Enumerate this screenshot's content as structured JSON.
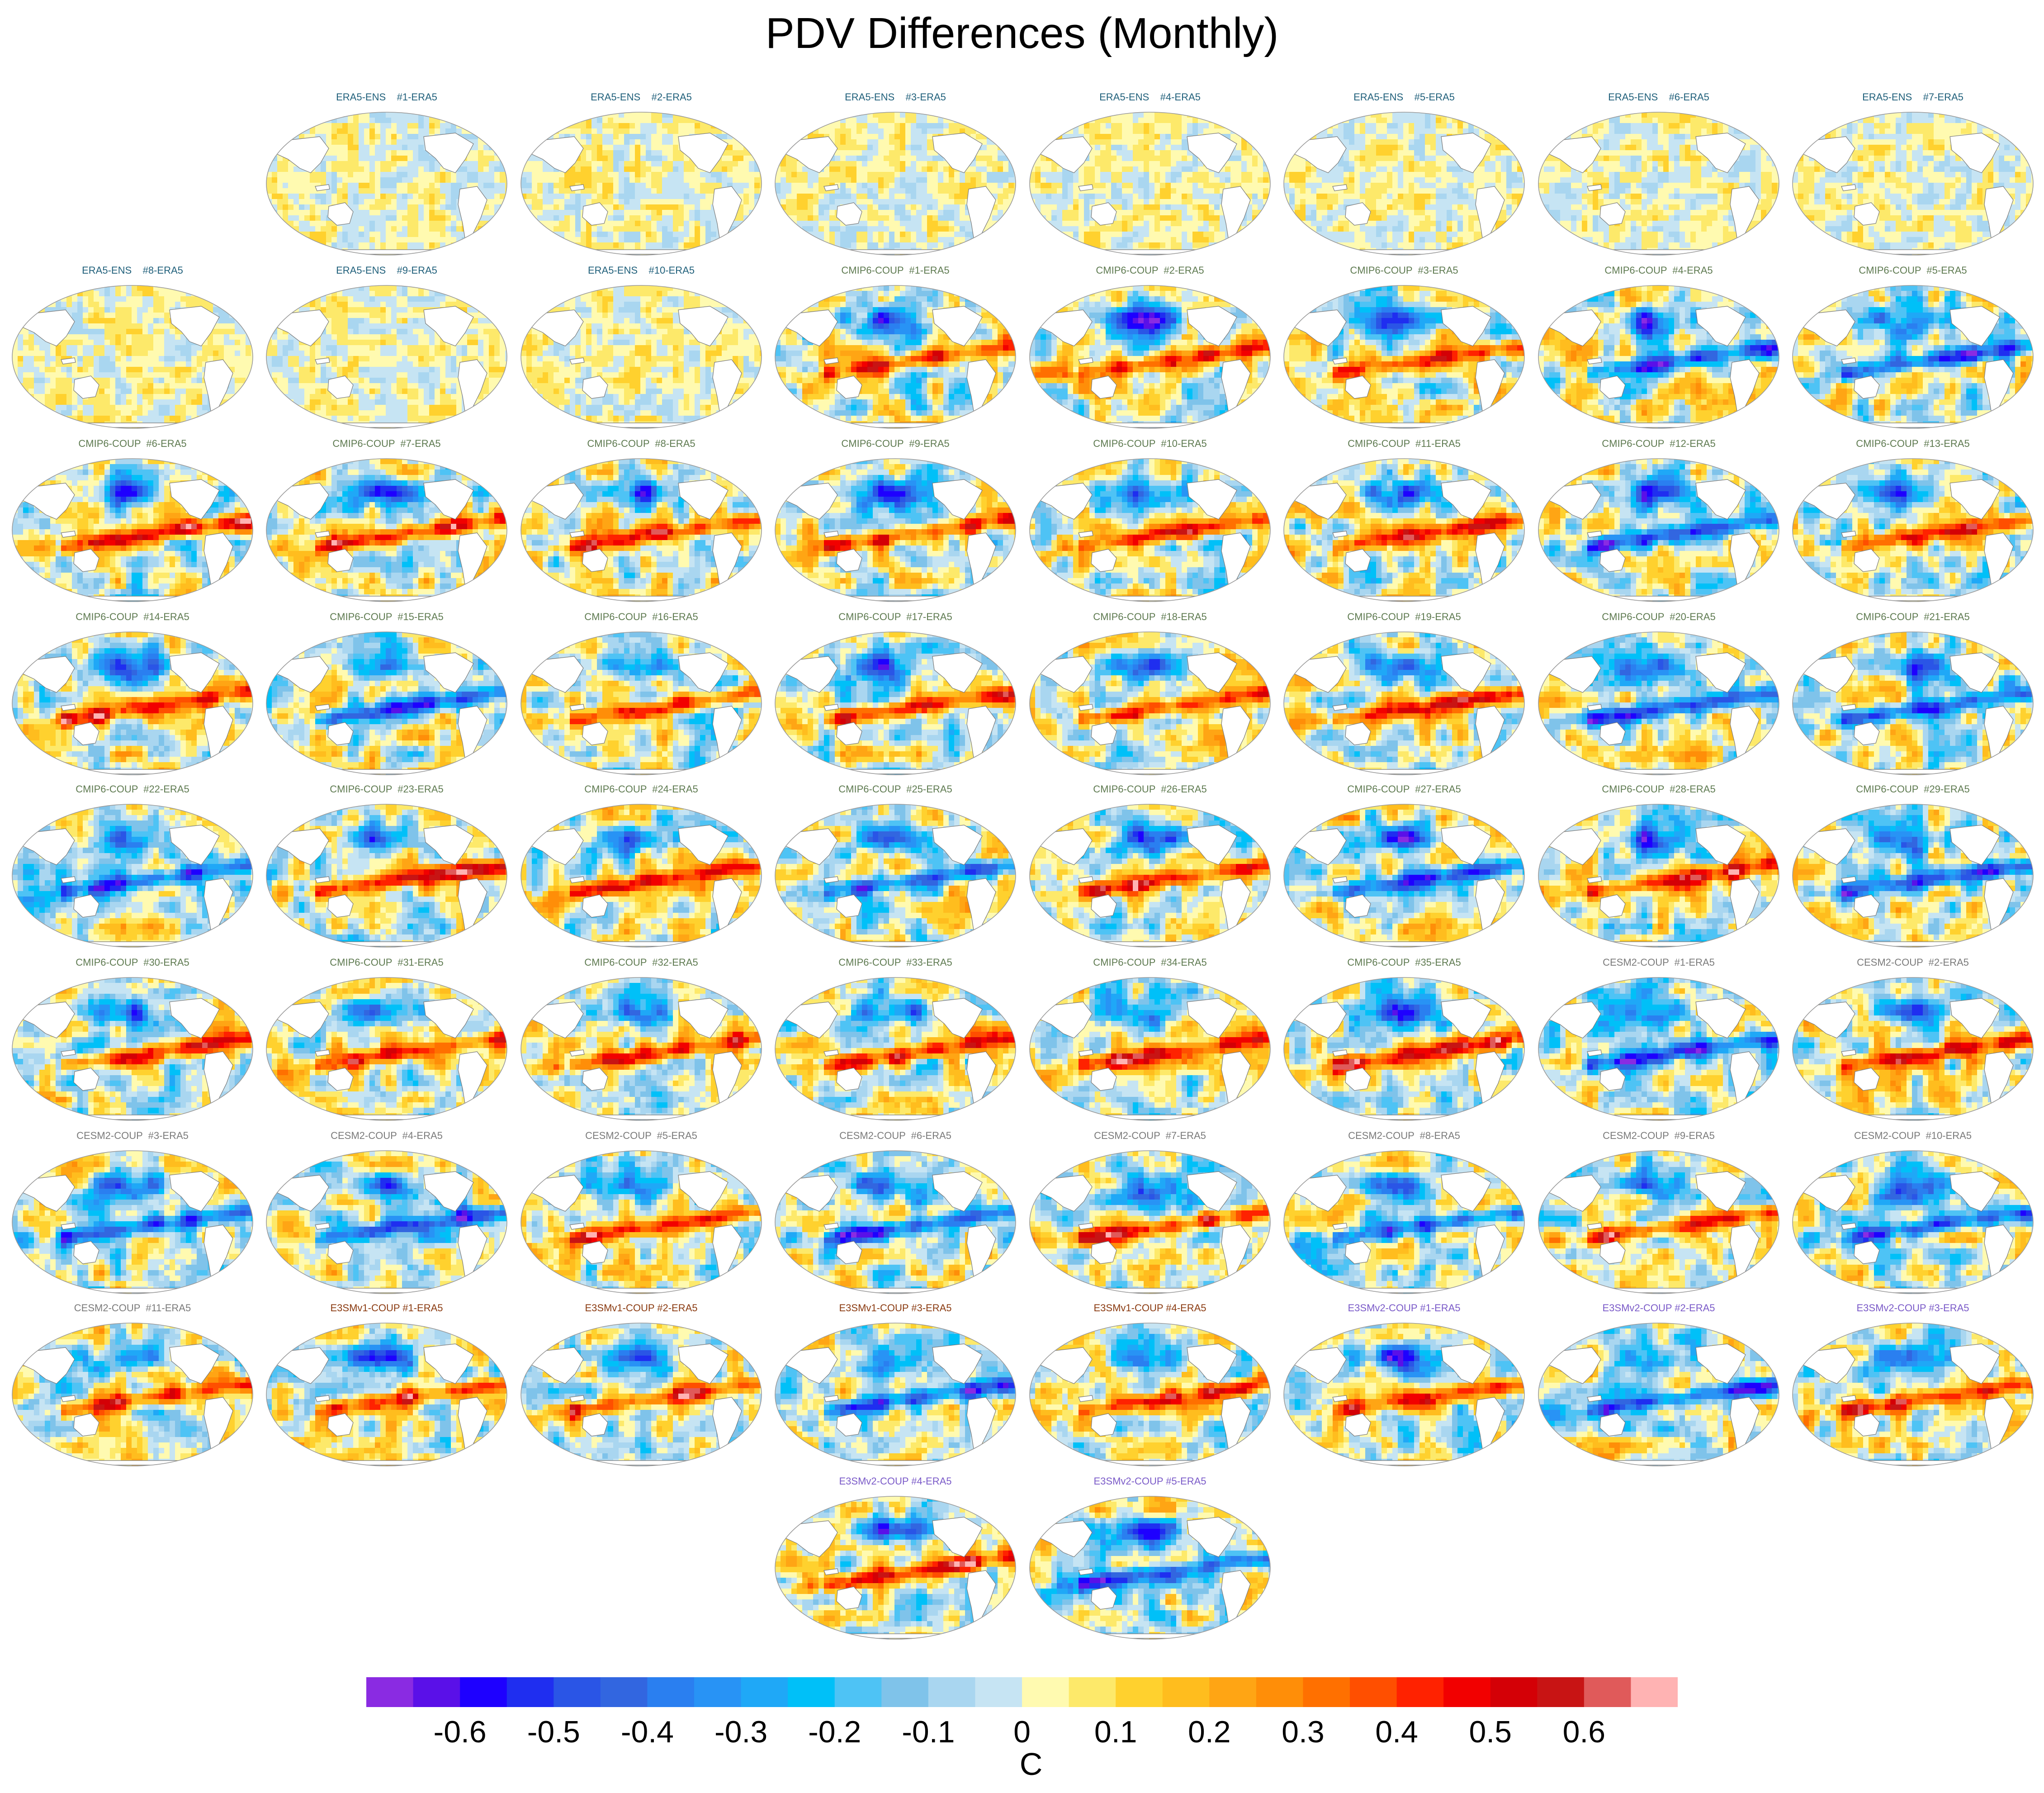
{
  "figure": {
    "title": "PDV Differences (Monthly)",
    "colorbar": {
      "unit": "C",
      "ticks": [
        "-0.6",
        "-0.5",
        "-0.4",
        "-0.3",
        "-0.2",
        "-0.1",
        "0",
        "0.1",
        "0.2",
        "0.3",
        "0.4",
        "0.5",
        "0.6"
      ],
      "tick_values": [
        -0.6,
        -0.5,
        -0.4,
        -0.3,
        -0.2,
        -0.1,
        0,
        0.1,
        0.2,
        0.3,
        0.4,
        0.5,
        0.6
      ],
      "range": [
        -0.7,
        0.7
      ],
      "colors": [
        "#8a2be2",
        "#5a10e8",
        "#1e00ff",
        "#1f2ef0",
        "#2a55e6",
        "#3266e0",
        "#2a7ff0",
        "#2893f5",
        "#1fa8f7",
        "#00c0f8",
        "#4ec3f5",
        "#7fc3ea",
        "#a9d6f0",
        "#c6e4f3",
        "#fffab0",
        "#fde96a",
        "#ffd12e",
        "#ffbd1e",
        "#ffa514",
        "#ff8e08",
        "#ff7000",
        "#ff4f00",
        "#ff2200",
        "#f20000",
        "#d40006",
        "#c81414",
        "#e05a5a",
        "#ffb3b3"
      ]
    },
    "groups": {
      "ERA5-ENS": {
        "color": "#1f5f7a"
      },
      "CMIP6-COUP": {
        "color": "#5e7a50"
      },
      "CESM2-COUP": {
        "color": "#7a7a7a"
      },
      "E3SMv1-COUP": {
        "color": "#8a3a10"
      },
      "E3SMv2-COUP": {
        "color": "#7a5ac8"
      }
    },
    "panels": [
      {
        "label": "ERA5-ENS    #1-ERA5",
        "group": "ERA5-ENS"
      },
      {
        "label": "ERA5-ENS    #2-ERA5",
        "group": "ERA5-ENS"
      },
      {
        "label": "ERA5-ENS    #3-ERA5",
        "group": "ERA5-ENS"
      },
      {
        "label": "ERA5-ENS    #4-ERA5",
        "group": "ERA5-ENS"
      },
      {
        "label": "ERA5-ENS    #5-ERA5",
        "group": "ERA5-ENS"
      },
      {
        "label": "ERA5-ENS    #6-ERA5",
        "group": "ERA5-ENS"
      },
      {
        "label": "ERA5-ENS    #7-ERA5",
        "group": "ERA5-ENS"
      },
      {
        "label": "ERA5-ENS    #8-ERA5",
        "group": "ERA5-ENS"
      },
      {
        "label": "ERA5-ENS    #9-ERA5",
        "group": "ERA5-ENS"
      },
      {
        "label": "ERA5-ENS    #10-ERA5",
        "group": "ERA5-ENS"
      },
      {
        "label": "CMIP6-COUP  #1-ERA5",
        "group": "CMIP6-COUP"
      },
      {
        "label": "CMIP6-COUP  #2-ERA5",
        "group": "CMIP6-COUP"
      },
      {
        "label": "CMIP6-COUP  #3-ERA5",
        "group": "CMIP6-COUP"
      },
      {
        "label": "CMIP6-COUP  #4-ERA5",
        "group": "CMIP6-COUP"
      },
      {
        "label": "CMIP6-COUP  #5-ERA5",
        "group": "CMIP6-COUP"
      },
      {
        "label": "CMIP6-COUP  #6-ERA5",
        "group": "CMIP6-COUP"
      },
      {
        "label": "CMIP6-COUP  #7-ERA5",
        "group": "CMIP6-COUP"
      },
      {
        "label": "CMIP6-COUP  #8-ERA5",
        "group": "CMIP6-COUP"
      },
      {
        "label": "CMIP6-COUP  #9-ERA5",
        "group": "CMIP6-COUP"
      },
      {
        "label": "CMIP6-COUP  #10-ERA5",
        "group": "CMIP6-COUP"
      },
      {
        "label": "CMIP6-COUP  #11-ERA5",
        "group": "CMIP6-COUP"
      },
      {
        "label": "CMIP6-COUP  #12-ERA5",
        "group": "CMIP6-COUP"
      },
      {
        "label": "CMIP6-COUP  #13-ERA5",
        "group": "CMIP6-COUP"
      },
      {
        "label": "CMIP6-COUP  #14-ERA5",
        "group": "CMIP6-COUP"
      },
      {
        "label": "CMIP6-COUP  #15-ERA5",
        "group": "CMIP6-COUP"
      },
      {
        "label": "CMIP6-COUP  #16-ERA5",
        "group": "CMIP6-COUP"
      },
      {
        "label": "CMIP6-COUP  #17-ERA5",
        "group": "CMIP6-COUP"
      },
      {
        "label": "CMIP6-COUP  #18-ERA5",
        "group": "CMIP6-COUP"
      },
      {
        "label": "CMIP6-COUP  #19-ERA5",
        "group": "CMIP6-COUP"
      },
      {
        "label": "CMIP6-COUP  #20-ERA5",
        "group": "CMIP6-COUP"
      },
      {
        "label": "CMIP6-COUP  #21-ERA5",
        "group": "CMIP6-COUP"
      },
      {
        "label": "CMIP6-COUP  #22-ERA5",
        "group": "CMIP6-COUP"
      },
      {
        "label": "CMIP6-COUP  #23-ERA5",
        "group": "CMIP6-COUP"
      },
      {
        "label": "CMIP6-COUP  #24-ERA5",
        "group": "CMIP6-COUP"
      },
      {
        "label": "CMIP6-COUP  #25-ERA5",
        "group": "CMIP6-COUP"
      },
      {
        "label": "CMIP6-COUP  #26-ERA5",
        "group": "CMIP6-COUP"
      },
      {
        "label": "CMIP6-COUP  #27-ERA5",
        "group": "CMIP6-COUP"
      },
      {
        "label": "CMIP6-COUP  #28-ERA5",
        "group": "CMIP6-COUP"
      },
      {
        "label": "CMIP6-COUP  #29-ERA5",
        "group": "CMIP6-COUP"
      },
      {
        "label": "CMIP6-COUP  #30-ERA5",
        "group": "CMIP6-COUP"
      },
      {
        "label": "CMIP6-COUP  #31-ERA5",
        "group": "CMIP6-COUP"
      },
      {
        "label": "CMIP6-COUP  #32-ERA5",
        "group": "CMIP6-COUP"
      },
      {
        "label": "CMIP6-COUP  #33-ERA5",
        "group": "CMIP6-COUP"
      },
      {
        "label": "CMIP6-COUP  #34-ERA5",
        "group": "CMIP6-COUP"
      },
      {
        "label": "CMIP6-COUP  #35-ERA5",
        "group": "CMIP6-COUP"
      },
      {
        "label": "CESM2-COUP  #1-ERA5",
        "group": "CESM2-COUP"
      },
      {
        "label": "CESM2-COUP  #2-ERA5",
        "group": "CESM2-COUP"
      },
      {
        "label": "CESM2-COUP  #3-ERA5",
        "group": "CESM2-COUP"
      },
      {
        "label": "CESM2-COUP  #4-ERA5",
        "group": "CESM2-COUP"
      },
      {
        "label": "CESM2-COUP  #5-ERA5",
        "group": "CESM2-COUP"
      },
      {
        "label": "CESM2-COUP  #6-ERA5",
        "group": "CESM2-COUP"
      },
      {
        "label": "CESM2-COUP  #7-ERA5",
        "group": "CESM2-COUP"
      },
      {
        "label": "CESM2-COUP  #8-ERA5",
        "group": "CESM2-COUP"
      },
      {
        "label": "CESM2-COUP  #9-ERA5",
        "group": "CESM2-COUP"
      },
      {
        "label": "CESM2-COUP  #10-ERA5",
        "group": "CESM2-COUP"
      },
      {
        "label": "CESM2-COUP  #11-ERA5",
        "group": "CESM2-COUP"
      },
      {
        "label": "E3SMv1-COUP #1-ERA5",
        "group": "E3SMv1-COUP"
      },
      {
        "label": "E3SMv1-COUP #2-ERA5",
        "group": "E3SMv1-COUP"
      },
      {
        "label": "E3SMv1-COUP #3-ERA5",
        "group": "E3SMv1-COUP"
      },
      {
        "label": "E3SMv1-COUP #4-ERA5",
        "group": "E3SMv1-COUP"
      },
      {
        "label": "E3SMv2-COUP #1-ERA5",
        "group": "E3SMv2-COUP"
      },
      {
        "label": "E3SMv2-COUP #2-ERA5",
        "group": "E3SMv2-COUP"
      },
      {
        "label": "E3SMv2-COUP #3-ERA5",
        "group": "E3SMv2-COUP"
      },
      {
        "label": "E3SMv2-COUP #4-ERA5",
        "group": "E3SMv2-COUP"
      },
      {
        "label": "E3SMv2-COUP #5-ERA5",
        "group": "E3SMv2-COUP"
      }
    ]
  }
}
